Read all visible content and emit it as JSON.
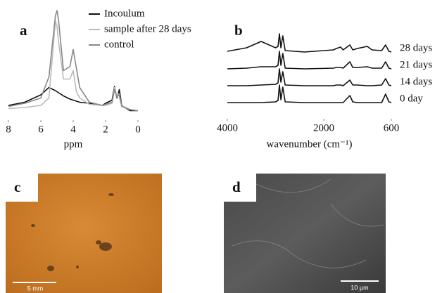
{
  "chart_data": [
    {
      "type": "line",
      "label": "a",
      "xlabel": "ppm",
      "xlim": [
        8,
        0
      ],
      "xticks": [
        8,
        6,
        4,
        2,
        0
      ],
      "ylim": [
        0,
        100
      ],
      "x": [
        8,
        7,
        6,
        5.5,
        5.1,
        5,
        4.9,
        4.6,
        4.2,
        4,
        3.8,
        3.6,
        3,
        2.2,
        2,
        1.6,
        1.45,
        1.3,
        1.2,
        1.15,
        1,
        0.5,
        0
      ],
      "series": [
        {
          "name": "Incoulum",
          "color": "#111111",
          "values": [
            10,
            13,
            20,
            27,
            24,
            23,
            22,
            19,
            16,
            15,
            14,
            13,
            12,
            10,
            12,
            15,
            28,
            17,
            22,
            25,
            10,
            5,
            5
          ]
        },
        {
          "name": "sample after 28 days",
          "color": "#bbbbbb",
          "values": [
            7,
            8,
            10,
            17,
            90,
            85,
            70,
            35,
            35,
            43,
            23,
            17,
            11,
            10,
            10,
            12,
            27,
            18,
            21,
            20,
            10,
            6,
            5
          ]
        },
        {
          "name": "control",
          "color": "#888888",
          "values": [
            9,
            12,
            17,
            37,
            95,
            100,
            90,
            43,
            47,
            63,
            45,
            27,
            13,
            10,
            11,
            13,
            25,
            18,
            20,
            19,
            9,
            6,
            5
          ]
        }
      ]
    },
    {
      "type": "line",
      "label": "b",
      "xlabel": "wavenumber (cm⁻¹)",
      "xlim": [
        4000,
        600
      ],
      "xticks": [
        4000,
        2000,
        600
      ],
      "ylim": [
        0,
        100
      ],
      "x": [
        4000,
        3600,
        3300,
        3000,
        2950,
        2920,
        2890,
        2850,
        2800,
        2400,
        1800,
        1740,
        1650,
        1600,
        1460,
        1400,
        1300,
        1100,
        1000,
        800,
        720,
        650,
        600
      ],
      "series": [
        {
          "name": "0 day",
          "color": "#111111",
          "values": [
            0,
            0,
            0,
            1,
            3,
            25,
            4,
            22,
            1,
            0,
            0,
            0,
            0,
            0,
            10,
            1,
            0,
            0,
            0,
            0,
            12,
            1,
            0
          ]
        },
        {
          "name": "14 days",
          "color": "#111111",
          "values": [
            0,
            0,
            1,
            2,
            4,
            24,
            5,
            20,
            1,
            0,
            0,
            1,
            1,
            0,
            8,
            1,
            1,
            0,
            0,
            1,
            10,
            1,
            0
          ]
        },
        {
          "name": "21 days",
          "color": "#111111",
          "values": [
            0,
            1,
            3,
            3,
            5,
            25,
            5,
            22,
            1,
            0,
            1,
            2,
            2,
            1,
            10,
            2,
            2,
            3,
            1,
            1,
            10,
            1,
            0
          ]
        },
        {
          "name": "28 days",
          "color": "#111111",
          "values": [
            1,
            6,
            15,
            6,
            8,
            26,
            6,
            23,
            2,
            0,
            3,
            5,
            7,
            3,
            10,
            3,
            5,
            8,
            3,
            2,
            10,
            1,
            0
          ]
        }
      ]
    }
  ],
  "images": [
    {
      "label": "c",
      "scale_bar": "5 mm"
    },
    {
      "label": "d",
      "scale_bar": "10 μm"
    }
  ]
}
